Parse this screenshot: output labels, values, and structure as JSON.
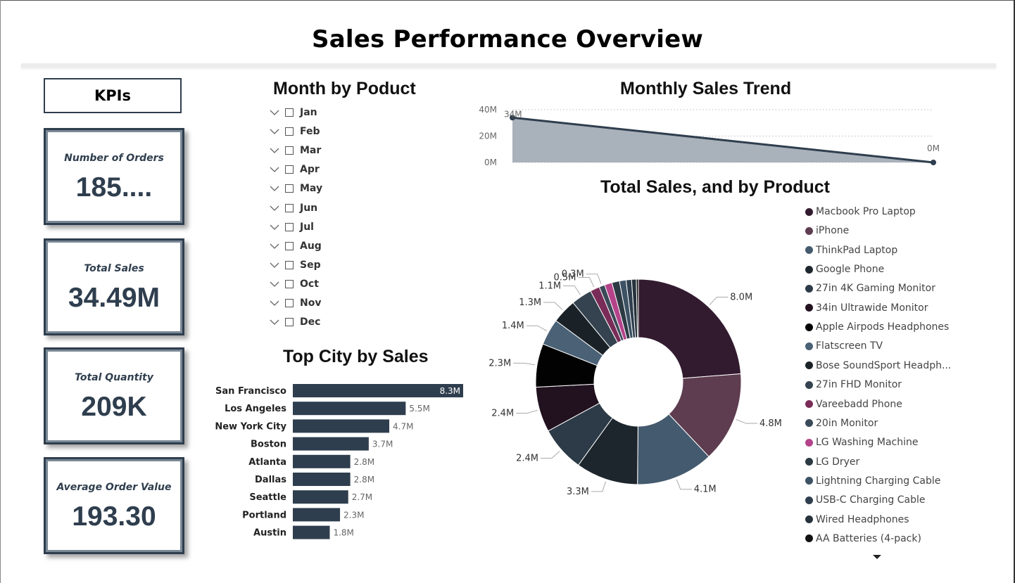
{
  "page_title": "Sales Performance Overview",
  "kpis": {
    "header": "KPIs",
    "cards": [
      {
        "label": "Number of Orders",
        "value": "185...."
      },
      {
        "label": "Total Sales",
        "value": "34.49M"
      },
      {
        "label": "Total Quantity",
        "value": "209K"
      },
      {
        "label": "Average Order Value",
        "value": "193.30"
      }
    ]
  },
  "month_slicer": {
    "title": "Month by Poduct",
    "items": [
      "Jan",
      "Feb",
      "Mar",
      "Apr",
      "May",
      "Jun",
      "Jul",
      "Aug",
      "Sep",
      "Oct",
      "Nov",
      "Dec"
    ]
  },
  "trend": {
    "title": "Monthly Sales Trend",
    "y_ticks": [
      "40M",
      "20M",
      "0M"
    ]
  },
  "city": {
    "title": "Top City by Sales"
  },
  "donut": {
    "title": "Total Sales, and by Product"
  },
  "colors": {
    "accent": "#2f3e4e",
    "bar": "#2f3e4e",
    "area_fill": "#a9b1ba"
  },
  "chart_data": [
    {
      "type": "area",
      "title": "Monthly Sales Trend",
      "x": [
        "",
        ""
      ],
      "values": [
        34,
        0
      ],
      "data_labels": [
        "34M",
        "0M"
      ],
      "ylim": [
        0,
        40
      ],
      "y_ticks": [
        "40M",
        "20M",
        "0M"
      ],
      "grid": true
    },
    {
      "type": "bar",
      "orientation": "horizontal",
      "title": "Top City by Sales",
      "categories": [
        "San Francisco",
        "Los Angeles",
        "New York City",
        "Boston",
        "Atlanta",
        "Dallas",
        "Seattle",
        "Portland",
        "Austin"
      ],
      "values": [
        8.3,
        5.5,
        4.7,
        3.7,
        2.8,
        2.8,
        2.7,
        2.3,
        1.8
      ],
      "data_labels": [
        "8.3M",
        "5.5M",
        "4.7M",
        "3.7M",
        "2.8M",
        "2.8M",
        "2.7M",
        "2.3M",
        "1.8M"
      ],
      "xlim": [
        0,
        8.3
      ]
    },
    {
      "type": "pie",
      "donut": true,
      "title": "Total Sales, and by Product",
      "legend_position": "right",
      "categories": [
        "Macbook Pro Laptop",
        "iPhone",
        "ThinkPad Laptop",
        "Google Phone",
        "27in 4K Gaming Monitor",
        "34in Ultrawide Monitor",
        "Apple Airpods Headphones",
        "Flatscreen TV",
        "Bose SoundSport Headph...",
        "27in FHD Monitor",
        "Vareebadd Phone",
        "20in Monitor",
        "LG Washing Machine",
        "LG Dryer",
        "Lightning Charging Cable",
        "USB-C Charging Cable",
        "Wired Headphones",
        "AA Batteries (4-pack)"
      ],
      "values": [
        8.0,
        4.8,
        4.1,
        3.3,
        2.4,
        2.4,
        2.3,
        1.4,
        1.3,
        1.1,
        0.5,
        0.3,
        0.4,
        0.4,
        0.35,
        0.29,
        0.25,
        0.11
      ],
      "data_labels": [
        "8.0M",
        "4.8M",
        "4.1M",
        "3.3M",
        "2.4M",
        "2.4M",
        "2.3M",
        "1.4M",
        "1.3M",
        "1.1M",
        "0.5M",
        "0.3M",
        "",
        "",
        "",
        "",
        "",
        ""
      ],
      "colors": [
        "#321a2f",
        "#5e3d50",
        "#445a6e",
        "#1e262d",
        "#2c3b47",
        "#221220",
        "#020202",
        "#4a6176",
        "#1a2228",
        "#34434f",
        "#7a2c58",
        "#3a4a58",
        "#b4438a",
        "#2c3a44",
        "#3d5264",
        "#2f3e4e",
        "#26323c",
        "#111111"
      ]
    }
  ]
}
